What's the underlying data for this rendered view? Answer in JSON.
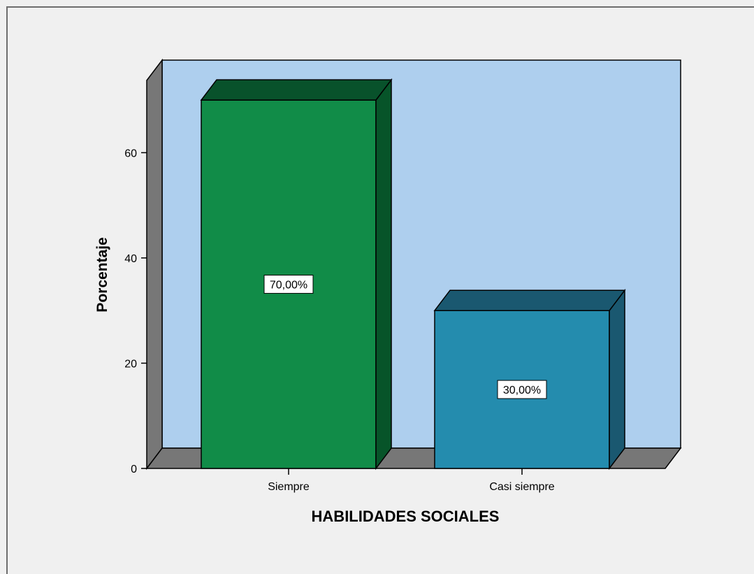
{
  "chart_data": {
    "type": "bar",
    "categories": [
      "Siempre",
      "Casi siempre"
    ],
    "values": [
      70,
      30
    ],
    "data_labels": [
      "70,00%",
      "30,00%"
    ],
    "xlabel": "HABILIDADES SOCIALES",
    "ylabel": "Porcentaje",
    "ylim": [
      0,
      70
    ],
    "yticks": [
      0,
      20,
      40,
      60
    ],
    "ytick_labels": [
      "0",
      "20",
      "40",
      "60"
    ],
    "style": "3d",
    "grid": false,
    "legend": "none"
  },
  "colors": {
    "background": "#f0f0f0",
    "plot_area": "#aecfee",
    "floor": "#777777",
    "bars": [
      "#118c48",
      "#248cae"
    ],
    "bar_tops": [
      "#08522b",
      "#1a5870"
    ],
    "bar_sides": [
      "#075429",
      "#1a5870"
    ]
  }
}
